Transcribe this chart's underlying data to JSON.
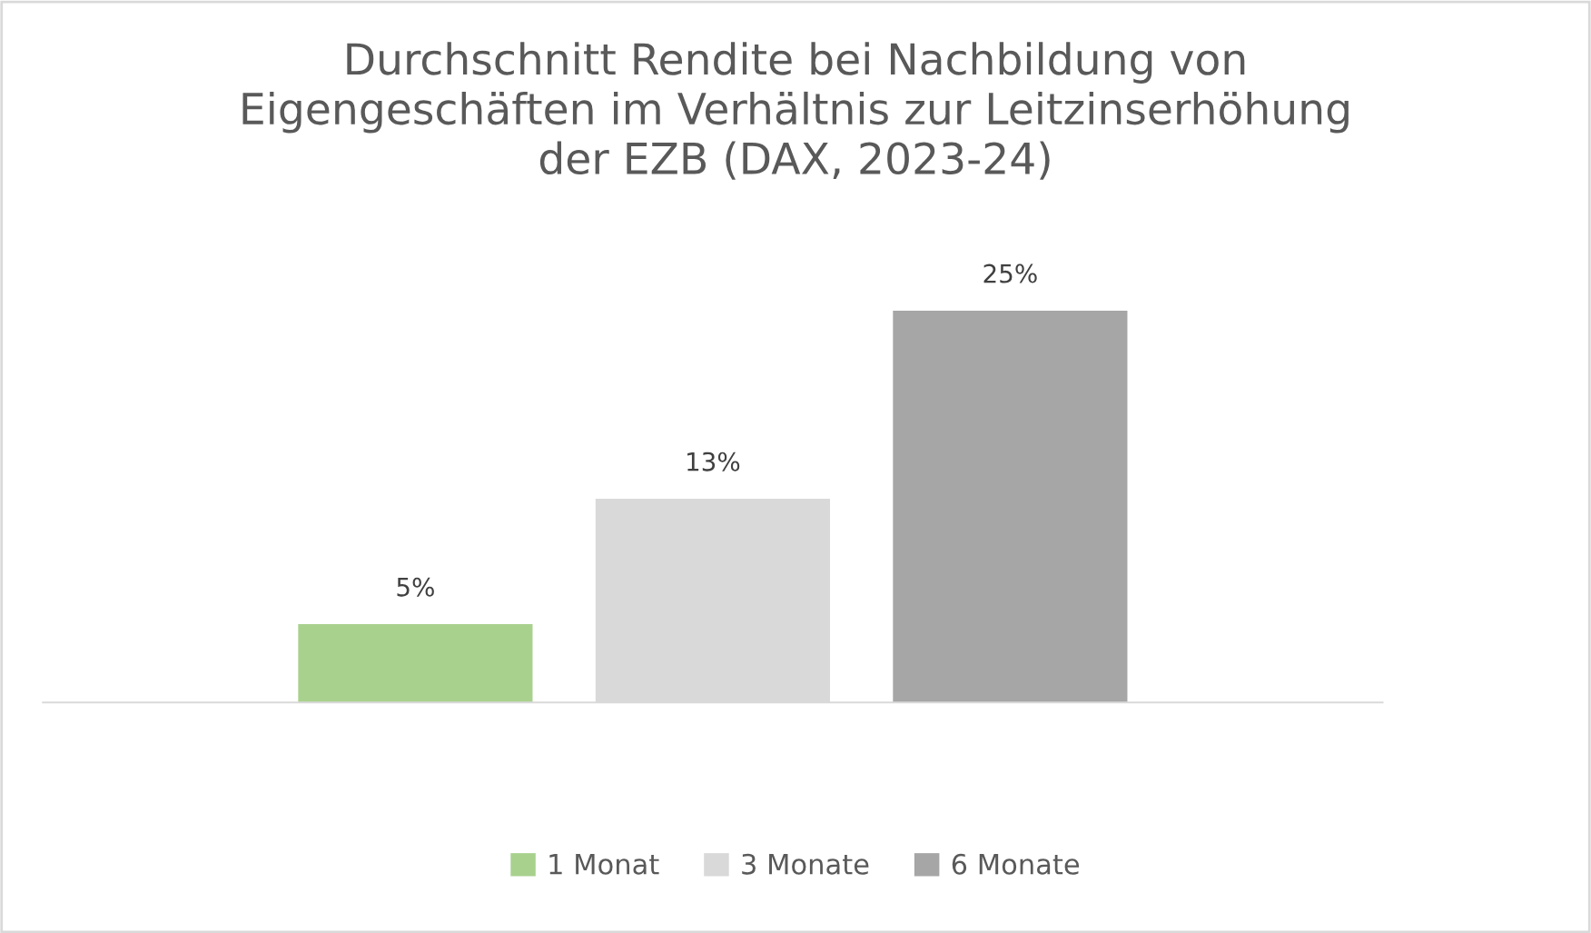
{
  "chart_data": {
    "type": "bar",
    "title": "Durchschnitt Rendite bei Nachbildung von\nEigengeschäften im Verhältnis zur Leitzinserhöhung\nder EZB (DAX, 2023-24)",
    "categories": [
      null
    ],
    "series": [
      {
        "name": "1 Monat",
        "color": "#a9d18e",
        "values": [
          5
        ],
        "value_labels": [
          "5%"
        ]
      },
      {
        "name": "3 Monate",
        "color": "#d9d9d9",
        "values": [
          13
        ],
        "value_labels": [
          "13%"
        ]
      },
      {
        "name": "6 Monate",
        "color": "#a6a6a6",
        "values": [
          25
        ],
        "value_labels": [
          "25%"
        ]
      }
    ],
    "legend": "bottom",
    "grid": false
  }
}
